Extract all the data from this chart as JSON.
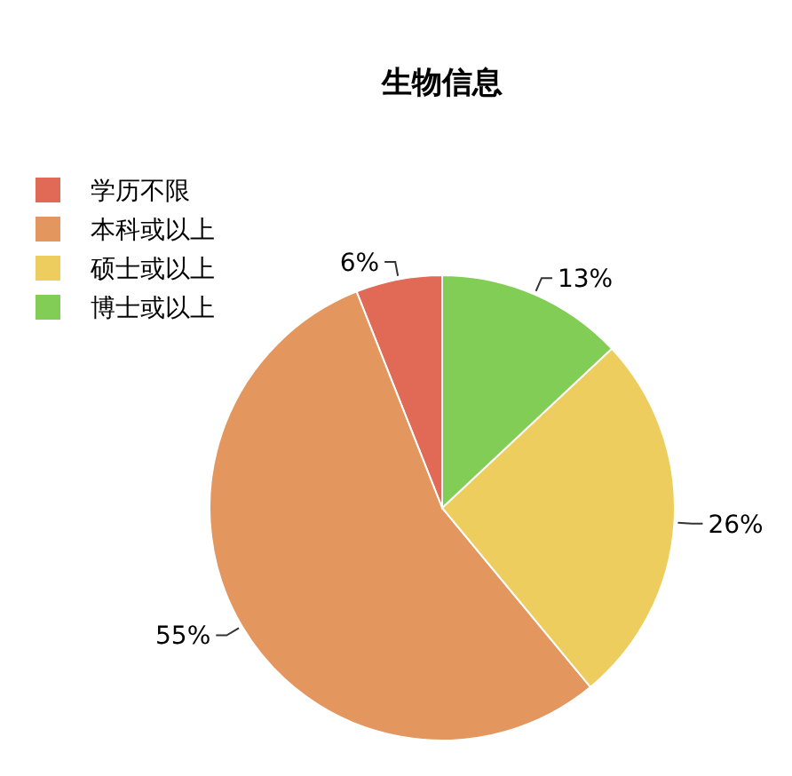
{
  "chart_data": {
    "type": "pie",
    "title": "生物信息",
    "categories": [
      "学历不限",
      "本科或以上",
      "硕士或以上",
      "博士或以上"
    ],
    "values": [
      6,
      55,
      26,
      13
    ],
    "value_labels": [
      "6%",
      "55%",
      "26%",
      "13%"
    ],
    "colors": [
      "#e06a55",
      "#e3965e",
      "#eccd5e",
      "#82cd55"
    ],
    "legend": "top left"
  }
}
